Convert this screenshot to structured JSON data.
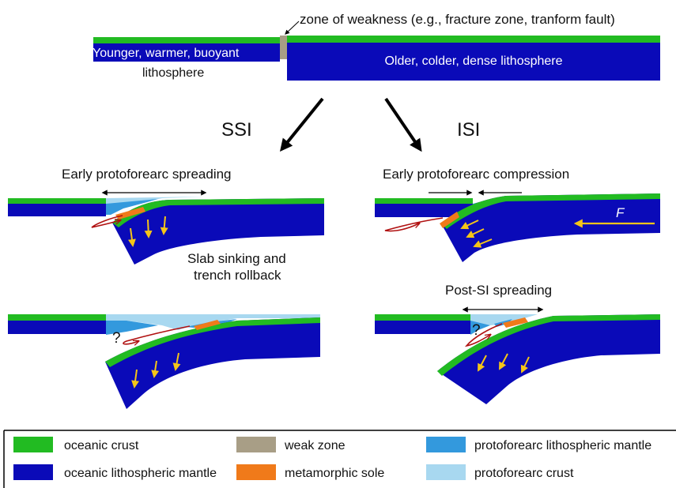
{
  "colors": {
    "oceanic_crust": "#22bb22",
    "oceanic_mantle": "#0a0ab8",
    "weak_zone": "#a89e86",
    "metamorphic_sole": "#f07a1a",
    "protoforearc_mantle": "#3399dd",
    "protoforearc_crust": "#a8d8f0",
    "arrow_yellow": "#f5c518",
    "flow_red": "#b01010"
  },
  "top": {
    "weakness_label": "zone of weakness (e.g., fracture zone, tranform fault)",
    "younger_label_1": "Younger, warmer, buoyant",
    "younger_label_2": "lithosphere",
    "older_label": "Older, colder, dense lithosphere"
  },
  "branches": {
    "ssi": "SSI",
    "isi": "ISI"
  },
  "panels": {
    "ssi_early_title": "Early protoforearc spreading",
    "ssi_slab_1": "Slab sinking and",
    "ssi_slab_2": "trench rollback",
    "isi_early_title": "Early protoforearc compression",
    "isi_force": "F",
    "isi_post_title": "Post-SI spreading",
    "question_mark": "?"
  },
  "legend": [
    {
      "label": "oceanic crust",
      "color_key": "oceanic_crust"
    },
    {
      "label": "weak zone",
      "color_key": "weak_zone"
    },
    {
      "label": "protoforearc lithospheric mantle",
      "color_key": "protoforearc_mantle"
    },
    {
      "label": "oceanic lithospheric mantle",
      "color_key": "oceanic_mantle"
    },
    {
      "label": "metamorphic sole",
      "color_key": "metamorphic_sole"
    },
    {
      "label": "protoforearc crust",
      "color_key": "protoforearc_crust"
    }
  ]
}
